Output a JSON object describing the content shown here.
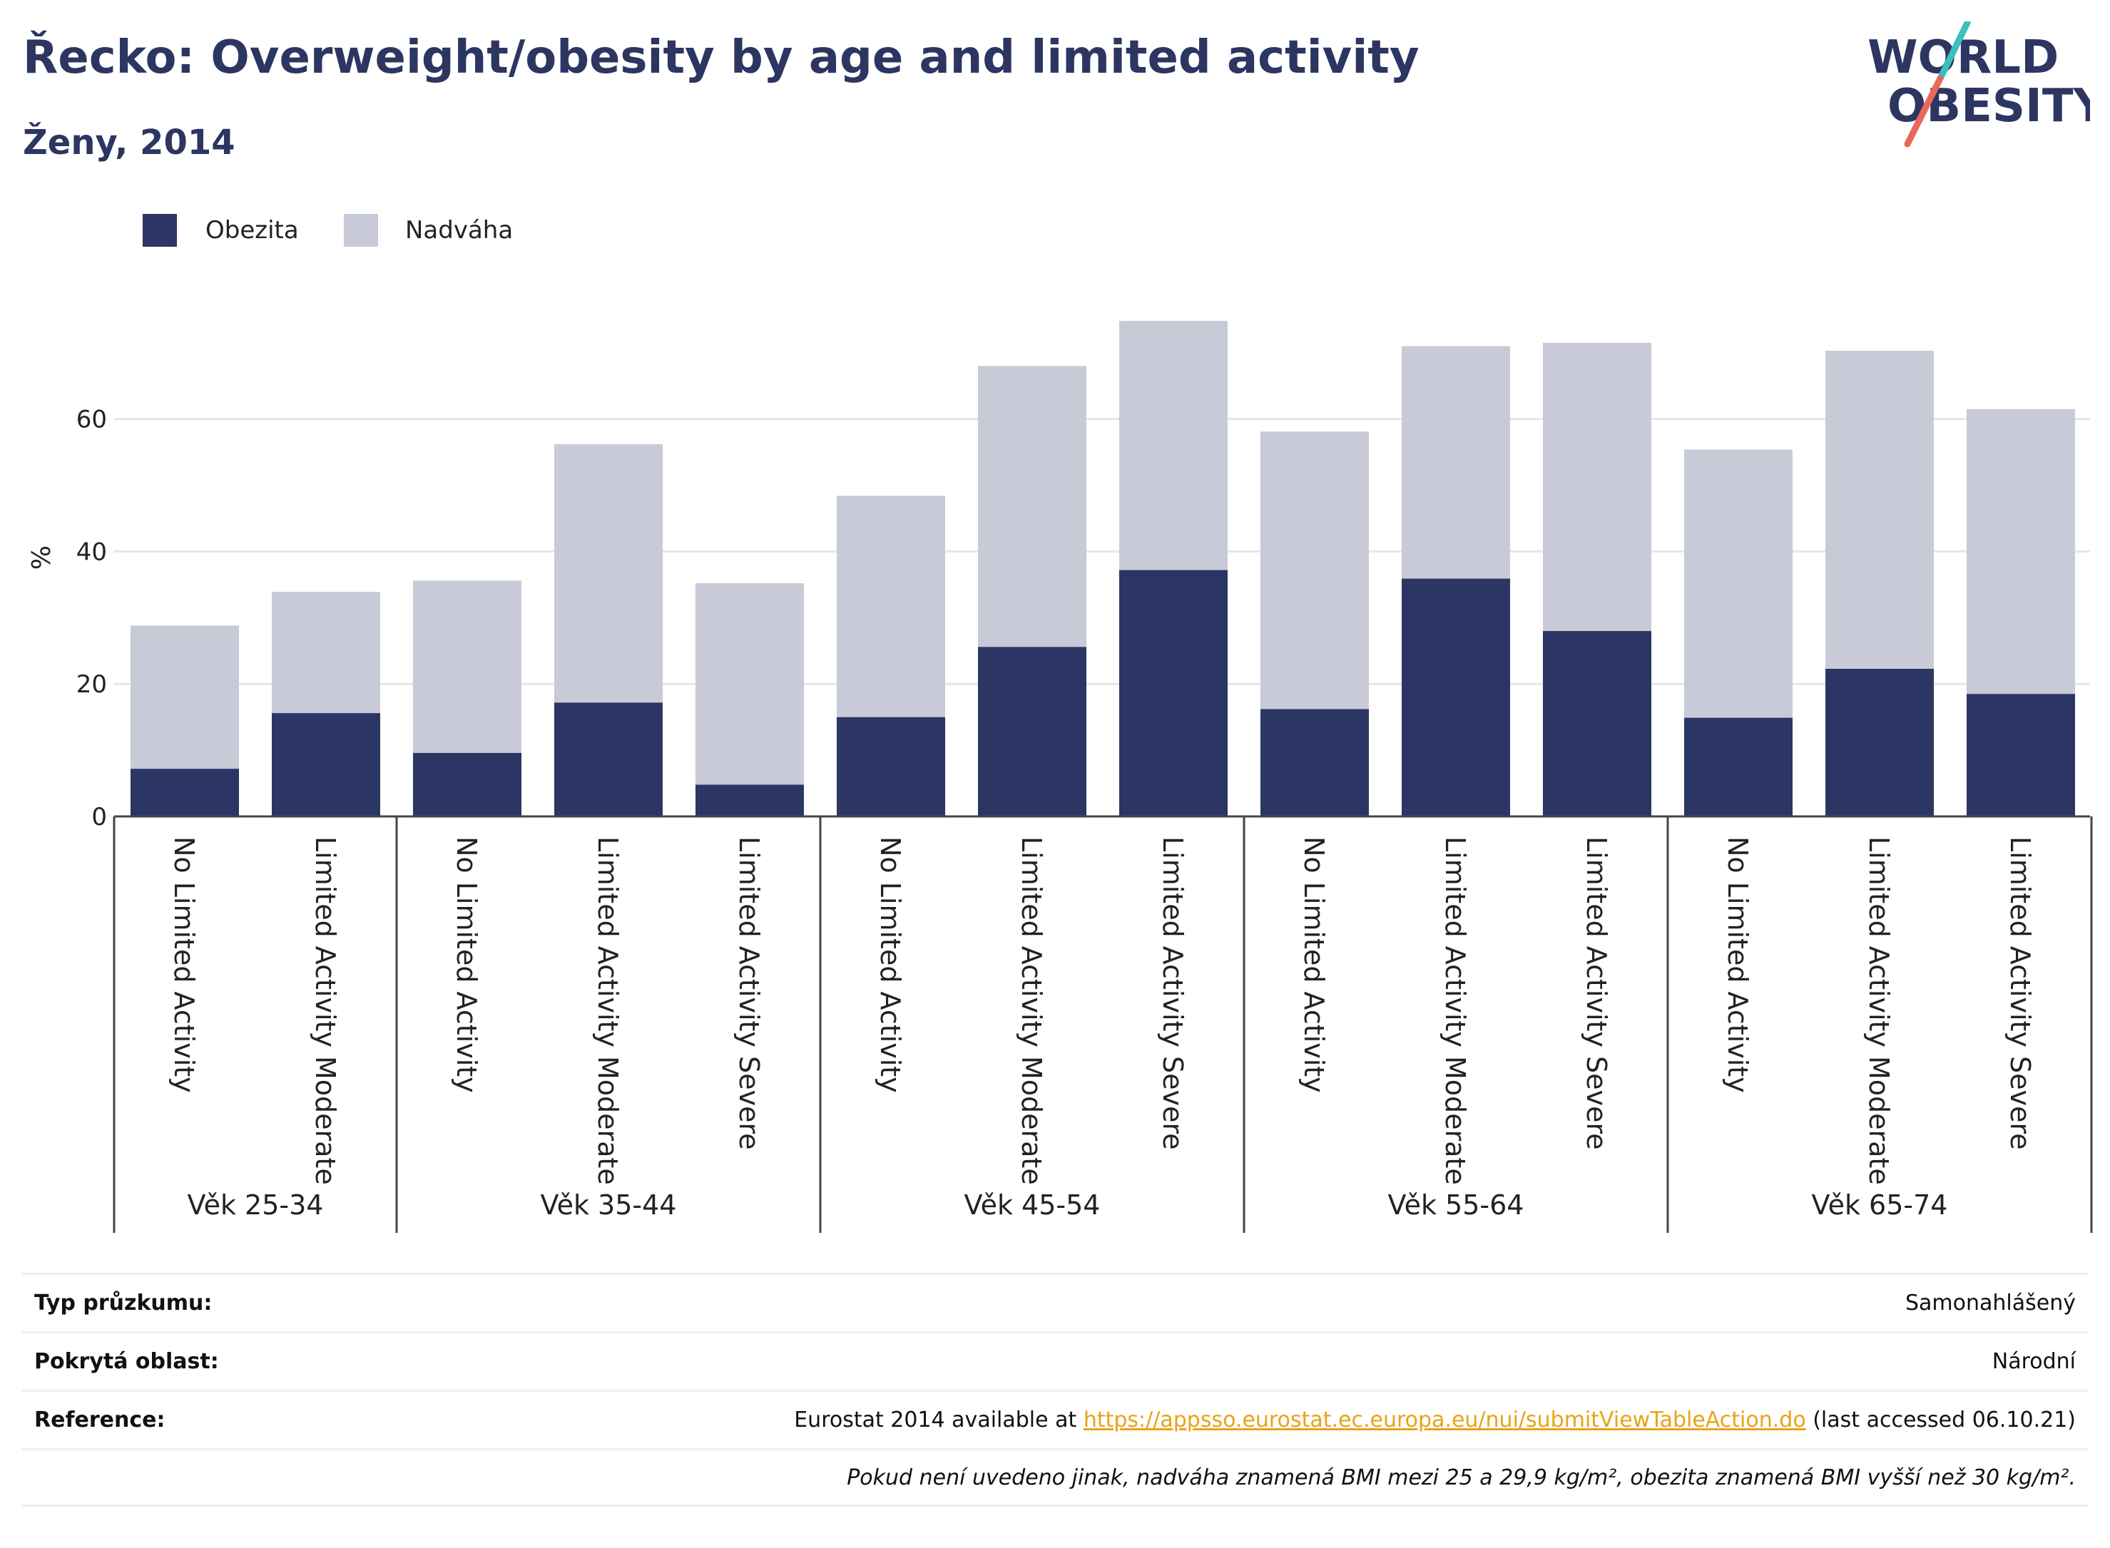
{
  "header": {
    "title": "Řecko: Overweight/obesity by age and limited activity",
    "subtitle": "Ženy, 2014"
  },
  "logo": {
    "line1": "WORLD",
    "line2": "OBESITY",
    "colors": {
      "text": "#2d3561",
      "slash_red": "#e8685a",
      "slash_teal": "#3bbfbf"
    }
  },
  "colors": {
    "obesity": "#2b3664",
    "overweight": "#c8cad7",
    "grid": "#e6e6e6",
    "axis": "#444444"
  },
  "chart_data": {
    "type": "bar",
    "stacked": true,
    "ylabel": "%",
    "xlabel": "",
    "ylim": [
      0,
      76
    ],
    "yticks": [
      0,
      20,
      40,
      60
    ],
    "grid": true,
    "legend_position": "top-left",
    "groups": [
      {
        "label": "Věk 25-34",
        "categories": [
          "No Limited Activity",
          "Limited Activity Moderate"
        ]
      },
      {
        "label": "Věk 35-44",
        "categories": [
          "No Limited Activity",
          "Limited Activity Moderate",
          "Limited Activity Severe"
        ]
      },
      {
        "label": "Věk 45-54",
        "categories": [
          "No Limited Activity",
          "Limited Activity Moderate",
          "Limited Activity Severe"
        ]
      },
      {
        "label": "Věk 55-64",
        "categories": [
          "No Limited Activity",
          "Limited Activity Moderate",
          "Limited Activity Severe"
        ]
      },
      {
        "label": "Věk 65-74",
        "categories": [
          "No Limited Activity",
          "Limited Activity Moderate",
          "Limited Activity Severe"
        ]
      }
    ],
    "series": [
      {
        "name": "Obezita",
        "values": [
          7.2,
          15.6,
          9.6,
          17.2,
          4.8,
          15.0,
          25.6,
          37.2,
          16.2,
          35.9,
          28.0,
          14.9,
          22.3,
          18.5
        ]
      },
      {
        "name": "Nadváha",
        "values": [
          21.6,
          18.3,
          26.0,
          39.0,
          30.4,
          33.4,
          42.4,
          37.6,
          41.9,
          35.1,
          43.5,
          40.5,
          48.0,
          43.0
        ]
      }
    ]
  },
  "info": {
    "rows": [
      {
        "label": "Typ průzkumu:",
        "value": "Samonahlášený"
      },
      {
        "label": "Pokrytá oblast:",
        "value": "Národní"
      }
    ],
    "reference": {
      "label": "Reference:",
      "prefix": "Eurostat 2014 available at ",
      "link": "https://appsso.eurostat.ec.europa.eu/nui/submitViewTableAction.do",
      "suffix": " (last accessed 06.10.21)"
    },
    "note": "Pokud není uvedeno jinak, nadváha znamená BMI mezi 25 a 29,9 kg/m², obezita znamená BMI vyšší než 30 kg/m²."
  }
}
